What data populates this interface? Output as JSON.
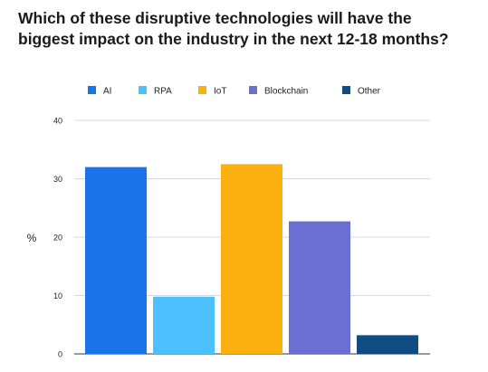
{
  "chart_data": {
    "type": "bar",
    "title": "Which of these disruptive technologies will have the biggest impact on the industry in the next 12-18 months?",
    "xlabel": "",
    "ylabel": "%",
    "ylim": [
      0,
      40
    ],
    "yticks": [
      "0",
      "10",
      "20",
      "30",
      "40"
    ],
    "grid": true,
    "legend_position": "top",
    "series": [
      {
        "name": "AI",
        "values": [
          32
        ],
        "color": "#1a73e8"
      },
      {
        "name": "RPA",
        "values": [
          9.8
        ],
        "color": "#4dc1ff"
      },
      {
        "name": "IoT",
        "values": [
          32.5
        ],
        "color": "#fbb011"
      },
      {
        "name": "Blockchain",
        "values": [
          22.7
        ],
        "color": "#6b6fd4"
      },
      {
        "name": "Other",
        "values": [
          3.2
        ],
        "color": "#0f4c81"
      }
    ]
  }
}
